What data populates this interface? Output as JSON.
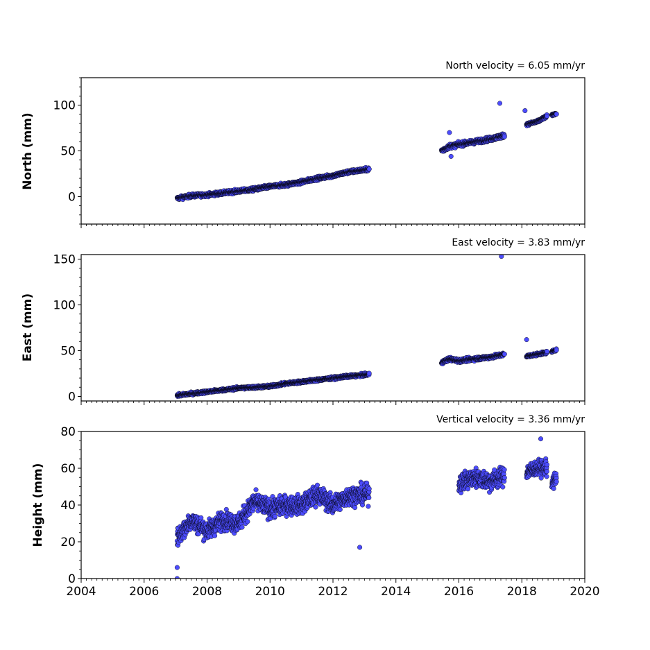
{
  "chart_data": [
    {
      "type": "scatter",
      "title": "North velocity = 6.05 mm/yr",
      "ylabel": "North (mm)",
      "xlim": [
        2004,
        2020
      ],
      "ylim": [
        -30,
        130
      ],
      "yticks": [
        "0",
        "50",
        "100"
      ],
      "yminor_step": 10,
      "marker_color": "#4c4cff",
      "segments": [
        {
          "x": [
            2007.05,
            2007.5,
            2008.0,
            2008.5,
            2009.0,
            2009.5,
            2010.0,
            2010.5,
            2011.0,
            2011.5,
            2012.0,
            2012.5,
            2013.15
          ],
          "y": [
            -2,
            1,
            2,
            4,
            6,
            8,
            11,
            13,
            16,
            20,
            23,
            27,
            30
          ],
          "spread": 4
        },
        {
          "x": [
            2015.45,
            2015.7,
            2016.0,
            2016.5,
            2017.0,
            2017.45
          ],
          "y": [
            50,
            55,
            57,
            60,
            63,
            67
          ],
          "spread": 5
        },
        {
          "x": [
            2018.15,
            2018.5,
            2018.8
          ],
          "y": [
            79,
            82,
            88
          ],
          "spread": 3
        },
        {
          "x": [
            2018.95,
            2019.1
          ],
          "y": [
            89,
            91
          ],
          "spread": 2
        }
      ],
      "outliers": [
        {
          "x": 2017.3,
          "y": 102
        },
        {
          "x": 2018.1,
          "y": 94
        },
        {
          "x": 2015.7,
          "y": 70
        },
        {
          "x": 2015.75,
          "y": 44
        }
      ]
    },
    {
      "type": "scatter",
      "title": "East velocity = 3.83 mm/yr",
      "ylabel": "East (mm)",
      "xlim": [
        2004,
        2020
      ],
      "ylim": [
        -5,
        155
      ],
      "yticks": [
        "0",
        "50",
        "100",
        "150"
      ],
      "yminor_step": 10,
      "marker_color": "#4c4cff",
      "segments": [
        {
          "x": [
            2007.05,
            2007.5,
            2008.0,
            2008.5,
            2009.0,
            2009.5,
            2010.0,
            2010.5,
            2011.0,
            2011.5,
            2012.0,
            2012.5,
            2013.15
          ],
          "y": [
            1,
            3,
            5,
            7,
            9,
            10,
            11,
            14,
            16,
            18,
            20,
            22,
            24
          ],
          "spread": 3
        },
        {
          "x": [
            2015.45,
            2015.7,
            2016.0,
            2016.5,
            2017.0,
            2017.45
          ],
          "y": [
            37,
            41,
            39,
            41,
            43,
            46
          ],
          "spread": 4
        },
        {
          "x": [
            2018.15,
            2018.5,
            2018.8
          ],
          "y": [
            44,
            46,
            48
          ],
          "spread": 3
        },
        {
          "x": [
            2018.95,
            2019.1
          ],
          "y": [
            49,
            51
          ],
          "spread": 2
        }
      ],
      "outliers": [
        {
          "x": 2017.35,
          "y": 153
        },
        {
          "x": 2018.15,
          "y": 62
        }
      ]
    },
    {
      "type": "scatter",
      "title": "Vertical velocity = 3.36 mm/yr",
      "ylabel": "Height (mm)",
      "xlabel": "",
      "xlim": [
        2004,
        2020
      ],
      "ylim": [
        0,
        80
      ],
      "yticks": [
        "0",
        "20",
        "40",
        "60",
        "80"
      ],
      "xticks": [
        "2004",
        "2006",
        "2008",
        "2010",
        "2012",
        "2014",
        "2016",
        "2018",
        "2020"
      ],
      "yminor_step": 5,
      "marker_color": "#4c4cff",
      "segments": [
        {
          "x": [
            2007.05,
            2007.5,
            2008.0,
            2008.5,
            2009.0,
            2009.5,
            2010.0,
            2010.5,
            2011.0,
            2011.5,
            2012.0,
            2012.5,
            2013.15
          ],
          "y": [
            22,
            32,
            26,
            32,
            30,
            42,
            38,
            40,
            40,
            46,
            40,
            45,
            46
          ],
          "spread": 11
        },
        {
          "x": [
            2016.0,
            2016.5,
            2017.0,
            2017.45
          ],
          "y": [
            52,
            55,
            53,
            56
          ],
          "spread": 11
        },
        {
          "x": [
            2018.15,
            2018.5,
            2018.8
          ],
          "y": [
            58,
            60,
            60
          ],
          "spread": 9
        },
        {
          "x": [
            2018.95,
            2019.1
          ],
          "y": [
            52,
            54
          ],
          "spread": 8
        }
      ],
      "outliers": [
        {
          "x": 2007.05,
          "y": 0
        },
        {
          "x": 2007.05,
          "y": 6
        },
        {
          "x": 2018.6,
          "y": 76
        },
        {
          "x": 2012.85,
          "y": 17
        }
      ]
    }
  ]
}
